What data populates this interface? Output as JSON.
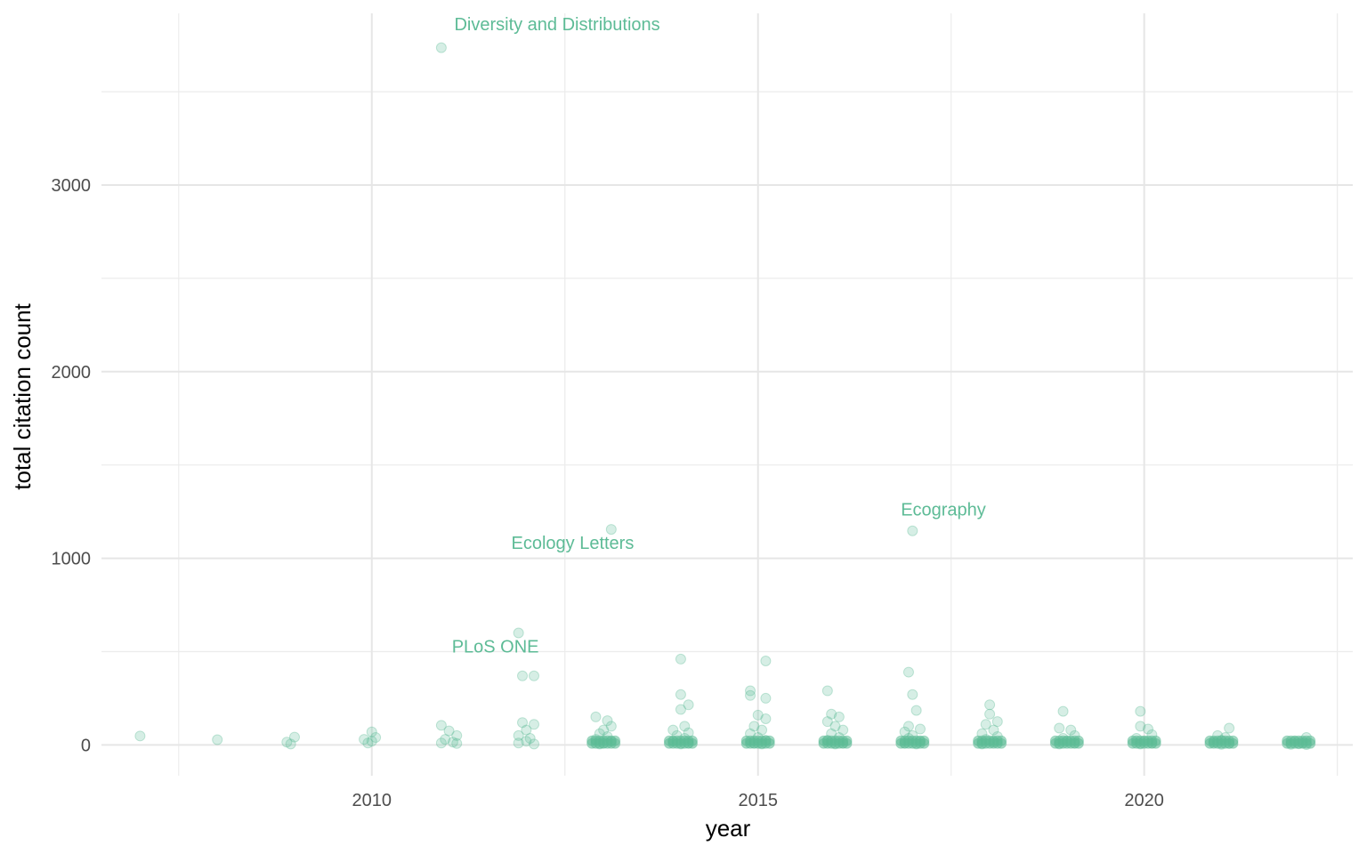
{
  "chart_data": {
    "type": "scatter",
    "xlabel": "year",
    "ylabel": "total citation count",
    "xlim": [
      2006.5,
      2022.7
    ],
    "ylim": [
      -165,
      3920
    ],
    "x_ticks": [
      2010,
      2015,
      2020
    ],
    "y_ticks": [
      0,
      1000,
      2000,
      3000
    ],
    "x_tick_labels": [
      "2010",
      "2015",
      "2020"
    ],
    "y_tick_labels": [
      "0",
      "1000",
      "2000",
      "3000"
    ],
    "grid": true,
    "point_color": "#5dbb96",
    "point_opacity": 0.25,
    "annotations": [
      {
        "text": "Diversity and Distributions",
        "x": 2012.4,
        "y": 3830
      },
      {
        "text": "Ecology Letters",
        "x": 2012.6,
        "y": 1050
      },
      {
        "text": "Ecography",
        "x": 2017.4,
        "y": 1230
      },
      {
        "text": "PLoS ONE",
        "x": 2011.6,
        "y": 496
      }
    ],
    "points": [
      [
        2007.0,
        48
      ],
      [
        2008.0,
        28
      ],
      [
        2008.9,
        15
      ],
      [
        2009.0,
        42
      ],
      [
        2008.95,
        5
      ],
      [
        2009.9,
        30
      ],
      [
        2010.0,
        70
      ],
      [
        2010.05,
        40
      ],
      [
        2009.95,
        10
      ],
      [
        2010.0,
        20
      ],
      [
        2010.9,
        3736
      ],
      [
        2010.9,
        105
      ],
      [
        2011.0,
        75
      ],
      [
        2011.1,
        50
      ],
      [
        2010.95,
        30
      ],
      [
        2011.05,
        15
      ],
      [
        2010.9,
        10
      ],
      [
        2011.1,
        8
      ],
      [
        2011.9,
        600
      ],
      [
        2011.95,
        370
      ],
      [
        2012.1,
        370
      ],
      [
        2011.95,
        120
      ],
      [
        2012.1,
        110
      ],
      [
        2012.0,
        80
      ],
      [
        2011.9,
        50
      ],
      [
        2012.05,
        35
      ],
      [
        2012.0,
        20
      ],
      [
        2011.9,
        10
      ],
      [
        2012.1,
        5
      ],
      [
        2013.1,
        1155
      ],
      [
        2012.9,
        150
      ],
      [
        2013.05,
        130
      ],
      [
        2013.1,
        100
      ],
      [
        2013.0,
        80
      ],
      [
        2012.95,
        60
      ],
      [
        2013.05,
        45
      ],
      [
        2012.9,
        30
      ],
      [
        2013.1,
        20
      ],
      [
        2013.0,
        10
      ],
      [
        2012.95,
        5
      ],
      [
        2014.0,
        460
      ],
      [
        2014.0,
        270
      ],
      [
        2014.1,
        215
      ],
      [
        2014.0,
        190
      ],
      [
        2014.05,
        100
      ],
      [
        2013.9,
        80
      ],
      [
        2014.1,
        65
      ],
      [
        2013.95,
        50
      ],
      [
        2014.05,
        35
      ],
      [
        2013.9,
        20
      ],
      [
        2014.1,
        10
      ],
      [
        2014.0,
        5
      ],
      [
        2015.1,
        450
      ],
      [
        2014.9,
        290
      ],
      [
        2014.9,
        265
      ],
      [
        2015.1,
        250
      ],
      [
        2015.0,
        160
      ],
      [
        2015.1,
        140
      ],
      [
        2014.95,
        100
      ],
      [
        2015.05,
        80
      ],
      [
        2014.9,
        60
      ],
      [
        2015.0,
        40
      ],
      [
        2015.1,
        25
      ],
      [
        2014.95,
        10
      ],
      [
        2015.05,
        5
      ],
      [
        2015.9,
        290
      ],
      [
        2015.95,
        165
      ],
      [
        2016.05,
        150
      ],
      [
        2015.9,
        125
      ],
      [
        2016.0,
        100
      ],
      [
        2016.1,
        80
      ],
      [
        2015.95,
        60
      ],
      [
        2016.05,
        40
      ],
      [
        2015.9,
        25
      ],
      [
        2016.1,
        10
      ],
      [
        2016.0,
        5
      ],
      [
        2017.0,
        1147
      ],
      [
        2016.95,
        390
      ],
      [
        2017.0,
        270
      ],
      [
        2017.05,
        185
      ],
      [
        2016.95,
        100
      ],
      [
        2017.1,
        85
      ],
      [
        2016.9,
        70
      ],
      [
        2017.0,
        50
      ],
      [
        2016.95,
        35
      ],
      [
        2017.1,
        20
      ],
      [
        2016.9,
        10
      ],
      [
        2017.05,
        5
      ],
      [
        2018.0,
        215
      ],
      [
        2018.0,
        165
      ],
      [
        2018.1,
        125
      ],
      [
        2017.95,
        110
      ],
      [
        2018.05,
        80
      ],
      [
        2017.9,
        60
      ],
      [
        2018.1,
        45
      ],
      [
        2017.95,
        30
      ],
      [
        2018.05,
        15
      ],
      [
        2017.9,
        5
      ],
      [
        2018.95,
        180
      ],
      [
        2018.9,
        90
      ],
      [
        2019.05,
        80
      ],
      [
        2019.1,
        50
      ],
      [
        2018.95,
        35
      ],
      [
        2019.0,
        20
      ],
      [
        2019.1,
        10
      ],
      [
        2018.9,
        5
      ],
      [
        2019.95,
        180
      ],
      [
        2019.95,
        100
      ],
      [
        2020.05,
        85
      ],
      [
        2020.1,
        55
      ],
      [
        2019.9,
        35
      ],
      [
        2020.0,
        20
      ],
      [
        2020.1,
        10
      ],
      [
        2019.95,
        5
      ],
      [
        2021.1,
        90
      ],
      [
        2020.95,
        50
      ],
      [
        2021.05,
        40
      ],
      [
        2021.0,
        25
      ],
      [
        2020.9,
        15
      ],
      [
        2021.1,
        8
      ],
      [
        2021.0,
        3
      ],
      [
        2022.1,
        40
      ],
      [
        2021.95,
        20
      ],
      [
        2022.05,
        12
      ],
      [
        2022.0,
        6
      ],
      [
        2021.9,
        3
      ],
      [
        2022.1,
        2
      ]
    ]
  }
}
